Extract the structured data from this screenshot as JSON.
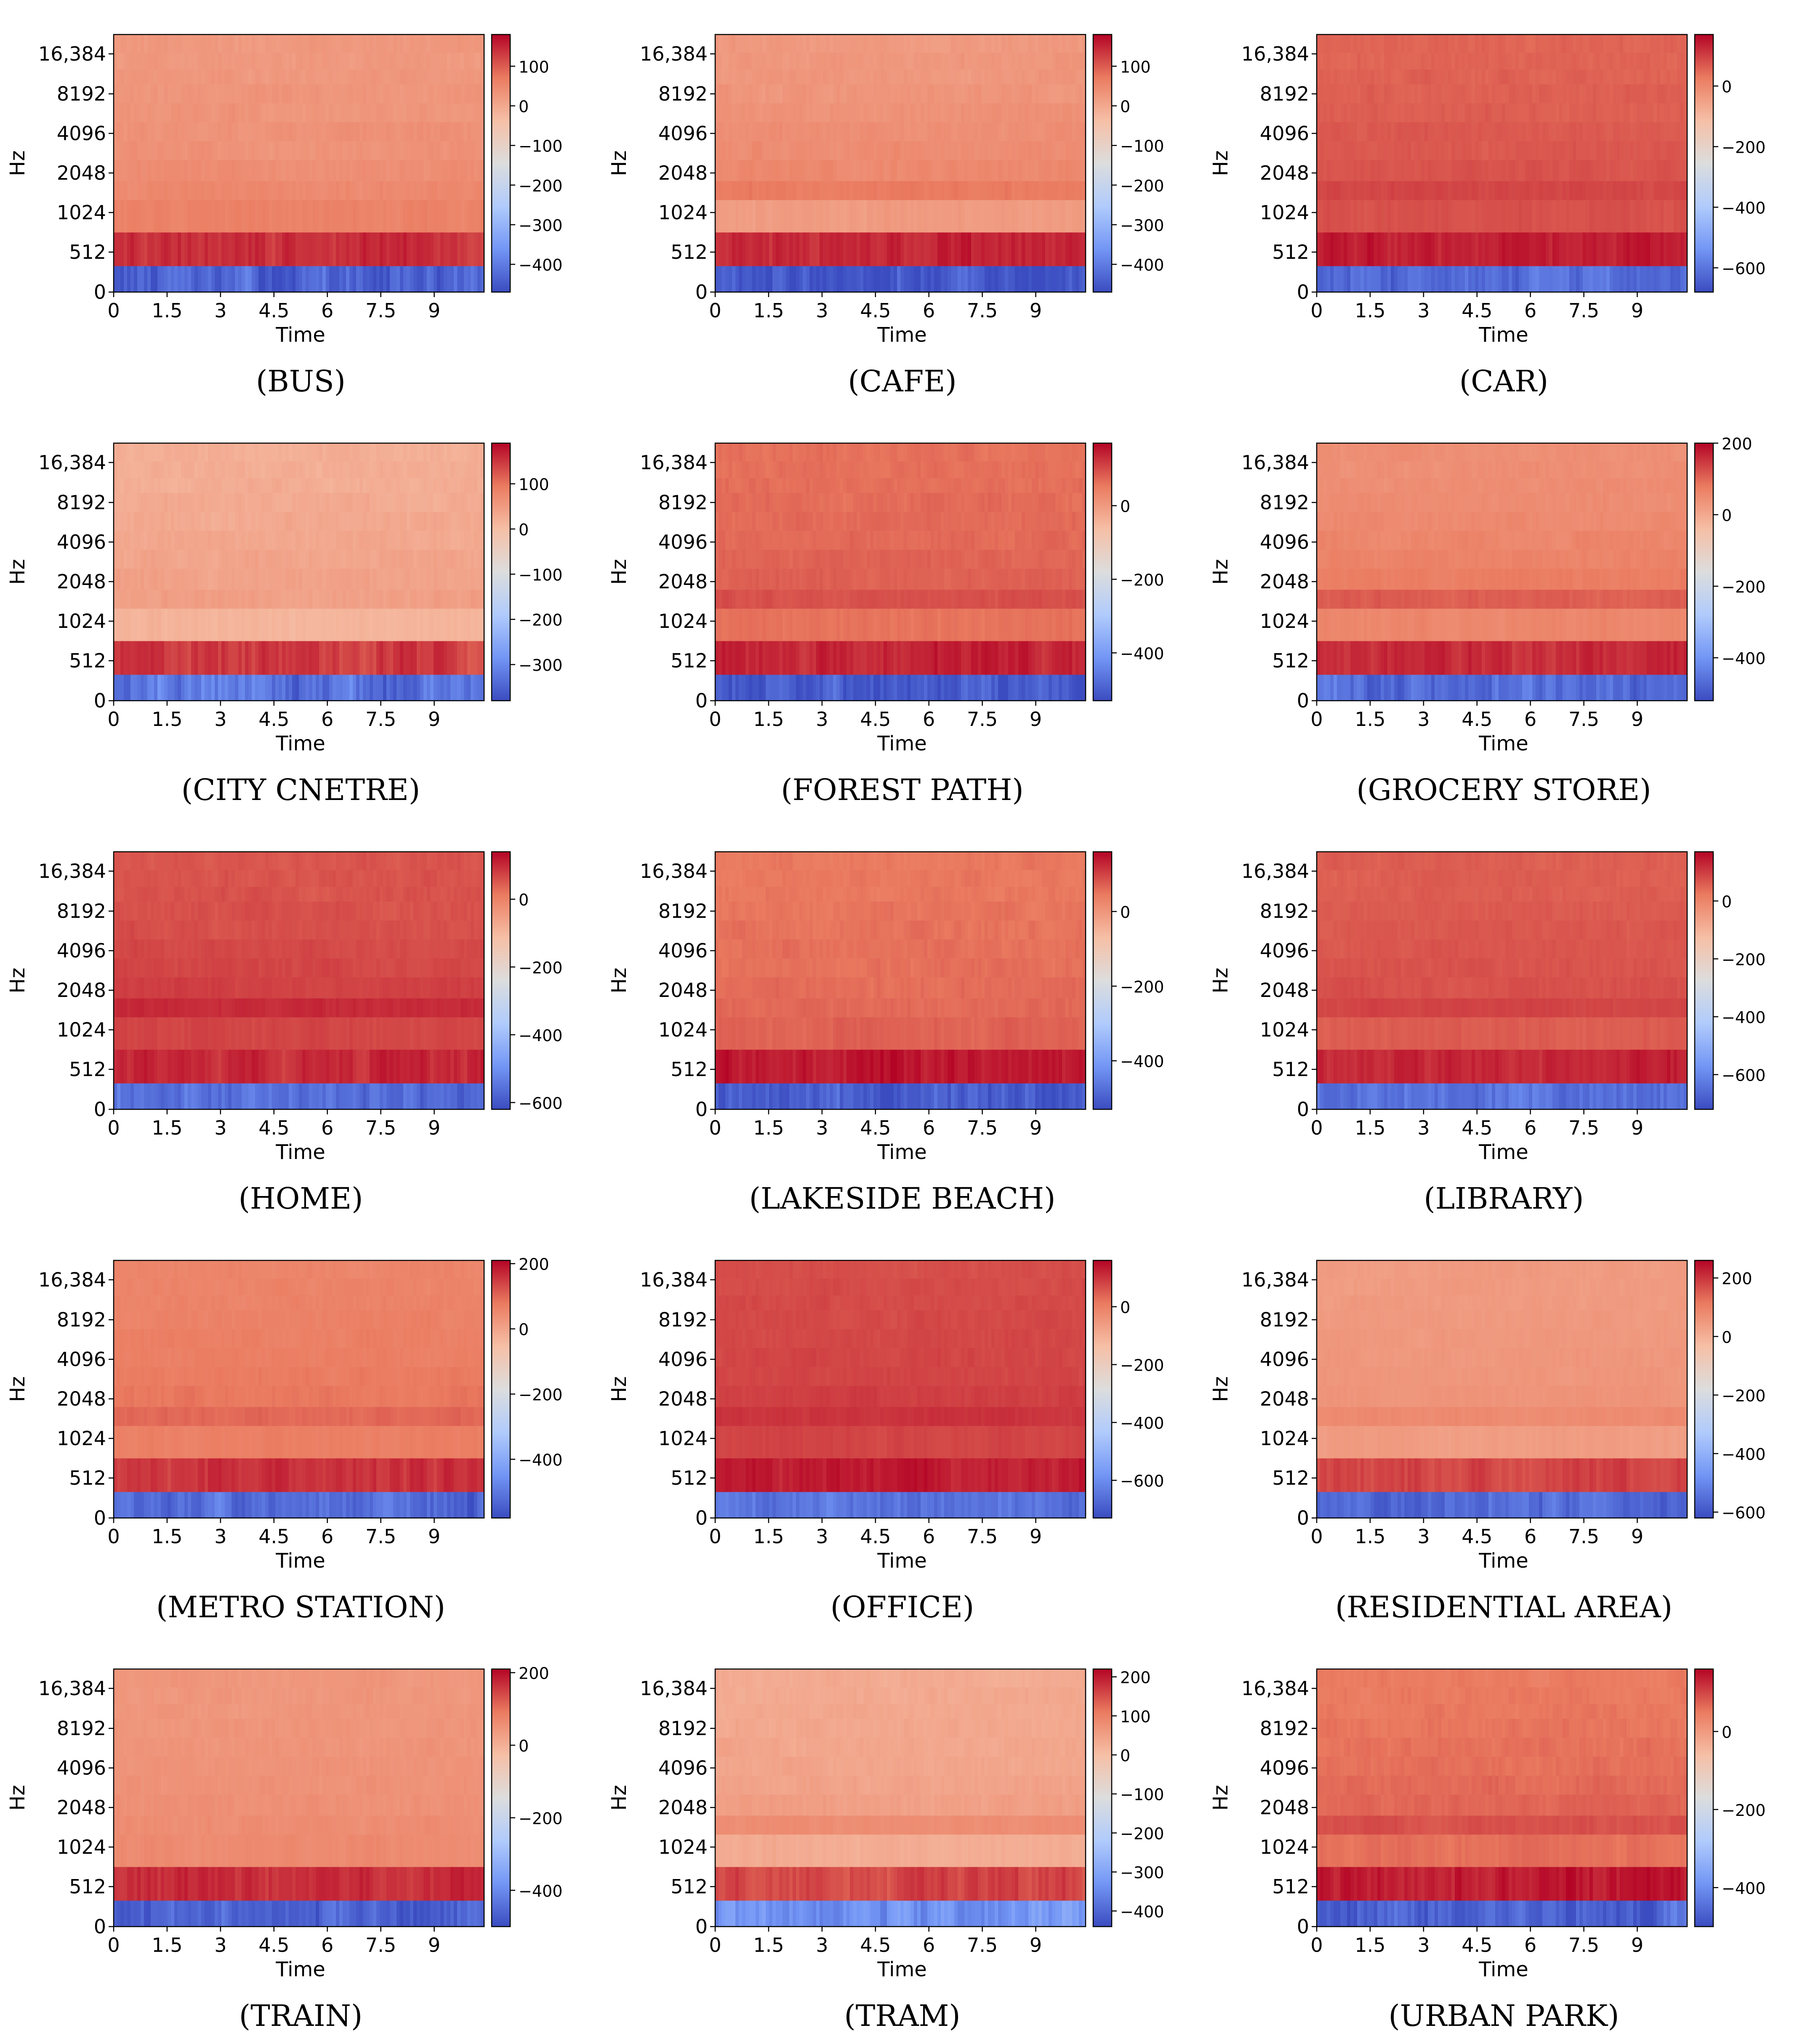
{
  "figure": {
    "colormap": [
      "#3b4cc0",
      "#7396f5",
      "#b0cbfc",
      "#dcdddd",
      "#f6bfa6",
      "#ea7b60",
      "#b40426"
    ]
  },
  "chart_data": [
    {
      "type": "heatmap",
      "caption": "(BUS)",
      "ylabel": "Hz",
      "xlabel": "Time",
      "x_ticks": [
        "0",
        "1.5",
        "3",
        "4.5",
        "6",
        "7.5",
        "9"
      ],
      "y_ticks": [
        "0",
        "512",
        "1024",
        "2048",
        "4096",
        "8192",
        "16,384"
      ],
      "cbar_ticks": [
        "100",
        "0",
        "−100",
        "−200",
        "−300",
        "−400"
      ],
      "cbar_values": [
        100,
        0,
        -100,
        -200,
        -300,
        -400
      ],
      "cbar_range": [
        -470,
        180
      ],
      "bands": [
        -440,
        140,
        60,
        48,
        42,
        36,
        34,
        30,
        28,
        26,
        25,
        24
      ]
    },
    {
      "type": "heatmap",
      "caption": "(CAFE)",
      "ylabel": "Hz",
      "xlabel": "Time",
      "x_ticks": [
        "0",
        "1.5",
        "3",
        "4.5",
        "6",
        "7.5",
        "9"
      ],
      "y_ticks": [
        "0",
        "512",
        "1024",
        "2048",
        "4096",
        "8192",
        "16,384"
      ],
      "cbar_ticks": [
        "100",
        "0",
        "−100",
        "−200",
        "−300",
        "−400"
      ],
      "cbar_values": [
        100,
        0,
        -100,
        -200,
        -300,
        -400
      ],
      "cbar_range": [
        -470,
        180
      ],
      "bands": [
        -450,
        150,
        20,
        70,
        50,
        45,
        40,
        36,
        30,
        28,
        26,
        24
      ]
    },
    {
      "type": "heatmap",
      "caption": "(CAR)",
      "ylabel": "Hz",
      "xlabel": "Time",
      "x_ticks": [
        "0",
        "1.5",
        "3",
        "4.5",
        "6",
        "7.5",
        "9"
      ],
      "y_ticks": [
        "0",
        "512",
        "1024",
        "2048",
        "4096",
        "8192",
        "16,384"
      ],
      "cbar_ticks": [
        "0",
        "−200",
        "−400",
        "−600"
      ],
      "cbar_values": [
        0,
        -200,
        -400,
        -600
      ],
      "cbar_range": [
        -680,
        170
      ],
      "bands": [
        -620,
        140,
        80,
        90,
        75,
        70,
        68,
        62,
        60,
        58,
        56,
        55
      ]
    },
    {
      "type": "heatmap",
      "caption": "(CITY CNETRE)",
      "ylabel": "Hz",
      "xlabel": "Time",
      "x_ticks": [
        "0",
        "1.5",
        "3",
        "4.5",
        "6",
        "7.5",
        "9"
      ],
      "y_ticks": [
        "0",
        "512",
        "1024",
        "2048",
        "4096",
        "8192",
        "16,384"
      ],
      "cbar_ticks": [
        "100",
        "0",
        "−100",
        "−200",
        "−300"
      ],
      "cbar_values": [
        100,
        0,
        -100,
        -200,
        -300
      ],
      "cbar_range": [
        -380,
        190
      ],
      "bands": [
        -330,
        150,
        15,
        45,
        40,
        35,
        32,
        30,
        28,
        26,
        24,
        22
      ]
    },
    {
      "type": "heatmap",
      "caption": "(FOREST PATH)",
      "ylabel": "Hz",
      "xlabel": "Time",
      "x_ticks": [
        "0",
        "1.5",
        "3",
        "4.5",
        "6",
        "7.5",
        "9"
      ],
      "y_ticks": [
        "0",
        "512",
        "1024",
        "2048",
        "4096",
        "8192",
        "16,384"
      ],
      "cbar_ticks": [
        "0",
        "−200",
        "−400"
      ],
      "cbar_values": [
        0,
        -200,
        -400
      ],
      "cbar_range": [
        -530,
        170
      ],
      "bands": [
        -500,
        140,
        60,
        95,
        80,
        75,
        72,
        70,
        68,
        65,
        64,
        62
      ]
    },
    {
      "type": "heatmap",
      "caption": "(GROCERY STORE)",
      "ylabel": "Hz",
      "xlabel": "Time",
      "x_ticks": [
        "0",
        "1.5",
        "3",
        "4.5",
        "6",
        "7.5",
        "9"
      ],
      "y_ticks": [
        "0",
        "512",
        "1024",
        "2048",
        "4096",
        "8192",
        "16,384"
      ],
      "cbar_ticks": [
        "200",
        "0",
        "−200",
        "−400"
      ],
      "cbar_values": [
        200,
        0,
        -200,
        -400
      ],
      "cbar_range": [
        -520,
        200
      ],
      "bands": [
        -470,
        160,
        60,
        110,
        75,
        65,
        60,
        55,
        50,
        48,
        45,
        44
      ]
    },
    {
      "type": "heatmap",
      "caption": "(HOME)",
      "ylabel": "Hz",
      "xlabel": "Time",
      "x_ticks": [
        "0",
        "1.5",
        "3",
        "4.5",
        "6",
        "7.5",
        "9"
      ],
      "y_ticks": [
        "0",
        "512",
        "1024",
        "2048",
        "4096",
        "8192",
        "16,384"
      ],
      "cbar_ticks": [
        "0",
        "−200",
        "−400",
        "−600"
      ],
      "cbar_values": [
        0,
        -200,
        -400,
        -600
      ],
      "cbar_range": [
        -620,
        140
      ],
      "bands": [
        -560,
        100,
        70,
        100,
        75,
        70,
        65,
        60,
        58,
        56,
        55,
        54
      ]
    },
    {
      "type": "heatmap",
      "caption": "(LAKESIDE BEACH)",
      "ylabel": "Hz",
      "xlabel": "Time",
      "x_ticks": [
        "0",
        "1.5",
        "3",
        "4.5",
        "6",
        "7.5",
        "9"
      ],
      "y_ticks": [
        "0",
        "512",
        "1024",
        "2048",
        "4096",
        "8192",
        "16,384"
      ],
      "cbar_ticks": [
        "0",
        "−200",
        "−400"
      ],
      "cbar_values": [
        0,
        -200,
        -400
      ],
      "cbar_range": [
        -530,
        160
      ],
      "bands": [
        -500,
        140,
        70,
        62,
        58,
        55,
        54,
        52,
        50,
        48,
        47,
        46
      ]
    },
    {
      "type": "heatmap",
      "caption": "(LIBRARY)",
      "ylabel": "Hz",
      "xlabel": "Time",
      "x_ticks": [
        "0",
        "1.5",
        "3",
        "4.5",
        "6",
        "7.5",
        "9"
      ],
      "y_ticks": [
        "0",
        "512",
        "1024",
        "2048",
        "4096",
        "8192",
        "16,384"
      ],
      "cbar_ticks": [
        "0",
        "−200",
        "−400",
        "−600"
      ],
      "cbar_values": [
        0,
        -200,
        -400,
        -600
      ],
      "cbar_range": [
        -720,
        170
      ],
      "bands": [
        -640,
        130,
        60,
        90,
        75,
        70,
        68,
        64,
        62,
        60,
        58,
        56
      ]
    },
    {
      "type": "heatmap",
      "caption": "(METRO STATION)",
      "ylabel": "Hz",
      "xlabel": "Time",
      "x_ticks": [
        "0",
        "1.5",
        "3",
        "4.5",
        "6",
        "7.5",
        "9"
      ],
      "y_ticks": [
        "0",
        "512",
        "1024",
        "2048",
        "4096",
        "8192",
        "16,384"
      ],
      "cbar_ticks": [
        "200",
        "0",
        "−200",
        "−400"
      ],
      "cbar_values": [
        200,
        0,
        -200,
        -400
      ],
      "cbar_range": [
        -580,
        210
      ],
      "bands": [
        -520,
        160,
        70,
        100,
        80,
        75,
        70,
        68,
        65,
        62,
        60,
        58
      ]
    },
    {
      "type": "heatmap",
      "caption": "(OFFICE)",
      "ylabel": "Hz",
      "xlabel": "Time",
      "x_ticks": [
        "0",
        "1.5",
        "3",
        "4.5",
        "6",
        "7.5",
        "9"
      ],
      "y_ticks": [
        "0",
        "512",
        "1024",
        "2048",
        "4096",
        "8192",
        "16,384"
      ],
      "cbar_ticks": [
        "0",
        "−200",
        "−400",
        "−600"
      ],
      "cbar_values": [
        0,
        -200,
        -400,
        -600
      ],
      "cbar_range": [
        -730,
        160
      ],
      "bands": [
        -650,
        130,
        80,
        100,
        85,
        80,
        78,
        76,
        74,
        72,
        70,
        68
      ]
    },
    {
      "type": "heatmap",
      "caption": "(RESIDENTIAL AREA)",
      "ylabel": "Hz",
      "xlabel": "Time",
      "x_ticks": [
        "0",
        "1.5",
        "3",
        "4.5",
        "6",
        "7.5",
        "9"
      ],
      "y_ticks": [
        "0",
        "512",
        "1024",
        "2048",
        "4096",
        "8192",
        "16,384"
      ],
      "cbar_ticks": [
        "200",
        "0",
        "−200",
        "−400",
        "−600"
      ],
      "cbar_values": [
        200,
        0,
        -200,
        -400,
        -600
      ],
      "cbar_range": [
        -620,
        260
      ],
      "bands": [
        -560,
        180,
        40,
        80,
        60,
        55,
        52,
        50,
        48,
        46,
        45,
        44
      ]
    },
    {
      "type": "heatmap",
      "caption": "(TRAIN)",
      "ylabel": "Hz",
      "xlabel": "Time",
      "x_ticks": [
        "0",
        "1.5",
        "3",
        "4.5",
        "6",
        "7.5",
        "9"
      ],
      "y_ticks": [
        "0",
        "512",
        "1024",
        "2048",
        "4096",
        "8192",
        "16,384"
      ],
      "cbar_ticks": [
        "200",
        "0",
        "−200",
        "−400"
      ],
      "cbar_values": [
        200,
        0,
        -200,
        -400
      ],
      "cbar_range": [
        -500,
        210
      ],
      "bands": [
        -460,
        170,
        65,
        60,
        55,
        52,
        50,
        48,
        46,
        45,
        44,
        43
      ]
    },
    {
      "type": "heatmap",
      "caption": "(TRAM)",
      "ylabel": "Hz",
      "xlabel": "Time",
      "x_ticks": [
        "0",
        "1.5",
        "3",
        "4.5",
        "6",
        "7.5",
        "9"
      ],
      "y_ticks": [
        "0",
        "512",
        "1024",
        "2048",
        "4096",
        "8192",
        "16,384"
      ],
      "cbar_ticks": [
        "200",
        "100",
        "0",
        "−100",
        "−200",
        "−300",
        "−400"
      ],
      "cbar_values": [
        200,
        100,
        0,
        -100,
        -200,
        -300,
        -400
      ],
      "cbar_range": [
        -440,
        220
      ],
      "bands": [
        -330,
        160,
        30,
        80,
        50,
        45,
        42,
        40,
        38,
        36,
        34,
        32
      ]
    },
    {
      "type": "heatmap",
      "caption": "(URBAN PARK)",
      "ylabel": "Hz",
      "xlabel": "Time",
      "x_ticks": [
        "0",
        "1.5",
        "3",
        "4.5",
        "6",
        "7.5",
        "9"
      ],
      "y_ticks": [
        "0",
        "512",
        "1024",
        "2048",
        "4096",
        "8192",
        "16,384"
      ],
      "cbar_ticks": [
        "0",
        "−200",
        "−400"
      ],
      "cbar_values": [
        0,
        -200,
        -400
      ],
      "cbar_range": [
        -500,
        160
      ],
      "bands": [
        -460,
        140,
        60,
        90,
        70,
        65,
        60,
        58,
        55,
        52,
        50,
        48
      ]
    }
  ]
}
